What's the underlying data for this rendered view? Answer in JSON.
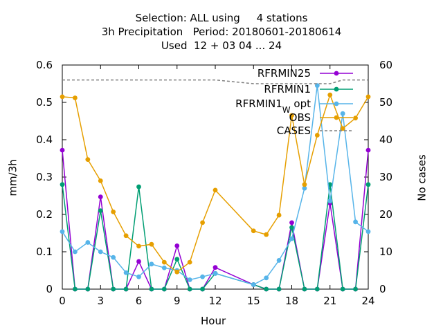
{
  "chart_data": {
    "type": "line",
    "title_lines": [
      "Selection: ALL using     4 stations",
      "3h Precipitation   Period: 20180601-20180614",
      "Used  12 + 03 04 ... 24"
    ],
    "xlabel": "Hour",
    "ylabel": "mm/3h",
    "y2label": "No cases",
    "xlim": [
      0,
      24
    ],
    "ylim": [
      0,
      0.6
    ],
    "y2lim": [
      0,
      60
    ],
    "xticks": [
      0,
      3,
      6,
      9,
      12,
      15,
      18,
      21,
      24
    ],
    "yticks": [
      "0",
      "0.1",
      "0.2",
      "0.3",
      "0.4",
      "0.5",
      "0.6"
    ],
    "y2ticks": [
      "0",
      "10",
      "20",
      "30",
      "40",
      "50",
      "60"
    ],
    "legend_position": "top-right",
    "series": [
      {
        "name": "RFRMIN25",
        "color": "#9400d3",
        "axis": "y1",
        "x": [
          0,
          1,
          2,
          3,
          4,
          5,
          6,
          7,
          8,
          9,
          10,
          11,
          12,
          15,
          16,
          17,
          18,
          19,
          20,
          21,
          22,
          23,
          24
        ],
        "values": [
          0.372,
          0,
          0,
          0.247,
          0,
          0,
          0.074,
          0,
          0,
          0.116,
          0,
          0,
          0.058,
          0.012,
          0,
          0,
          0.178,
          0,
          0,
          0.23,
          0,
          0,
          0.372
        ]
      },
      {
        "name": "RFRMIN1",
        "color": "#009e73",
        "axis": "y1",
        "x": [
          0,
          1,
          2,
          3,
          4,
          5,
          6,
          7,
          8,
          9,
          10,
          11,
          12,
          15,
          16,
          17,
          18,
          19,
          20,
          21,
          22,
          23,
          24
        ],
        "values": [
          0.28,
          0,
          0,
          0.21,
          0,
          0,
          0.274,
          0,
          0,
          0.08,
          0,
          0,
          0.042,
          0.012,
          0,
          0,
          0.165,
          0,
          0,
          0.28,
          0,
          0,
          0.28
        ]
      },
      {
        "name_main": "RFRMIN1",
        "name_sub": "W",
        "name_rest": " opt",
        "color": "#56b4e9",
        "axis": "y1",
        "x": [
          0,
          1,
          2,
          3,
          4,
          5,
          6,
          7,
          8,
          9,
          10,
          11,
          12,
          15,
          16,
          17,
          18,
          19,
          20,
          21,
          22,
          23,
          24
        ],
        "values": [
          0.154,
          0.1,
          0.125,
          0.1,
          0.085,
          0.044,
          0.033,
          0.067,
          0.057,
          0.05,
          0.025,
          0.033,
          0.042,
          0.012,
          0.03,
          0.077,
          0.135,
          0.27,
          0.545,
          0.236,
          0.47,
          0.18,
          0.154
        ]
      },
      {
        "name": "OBS",
        "color": "#e69f00",
        "axis": "y1",
        "x": [
          0,
          1,
          2,
          3,
          4,
          5,
          6,
          7,
          8,
          9,
          10,
          11,
          12,
          15,
          16,
          17,
          18,
          19,
          20,
          21,
          22,
          23,
          24
        ],
        "values": [
          0.515,
          0.512,
          0.347,
          0.29,
          0.207,
          0.143,
          0.115,
          0.12,
          0.072,
          0.046,
          0.072,
          0.178,
          0.265,
          0.156,
          0.146,
          0.198,
          0.465,
          0.28,
          0.412,
          0.52,
          0.43,
          0.458,
          0.515
        ]
      },
      {
        "name": "CASES",
        "color": "#7f7f7f",
        "axis": "y2",
        "dashed": true,
        "x": [
          0,
          12,
          15,
          16,
          17,
          18,
          19,
          20,
          21,
          22,
          23,
          24
        ],
        "values": [
          56,
          56,
          55,
          55,
          55,
          55,
          55,
          55,
          55,
          56,
          56,
          56
        ]
      }
    ]
  }
}
